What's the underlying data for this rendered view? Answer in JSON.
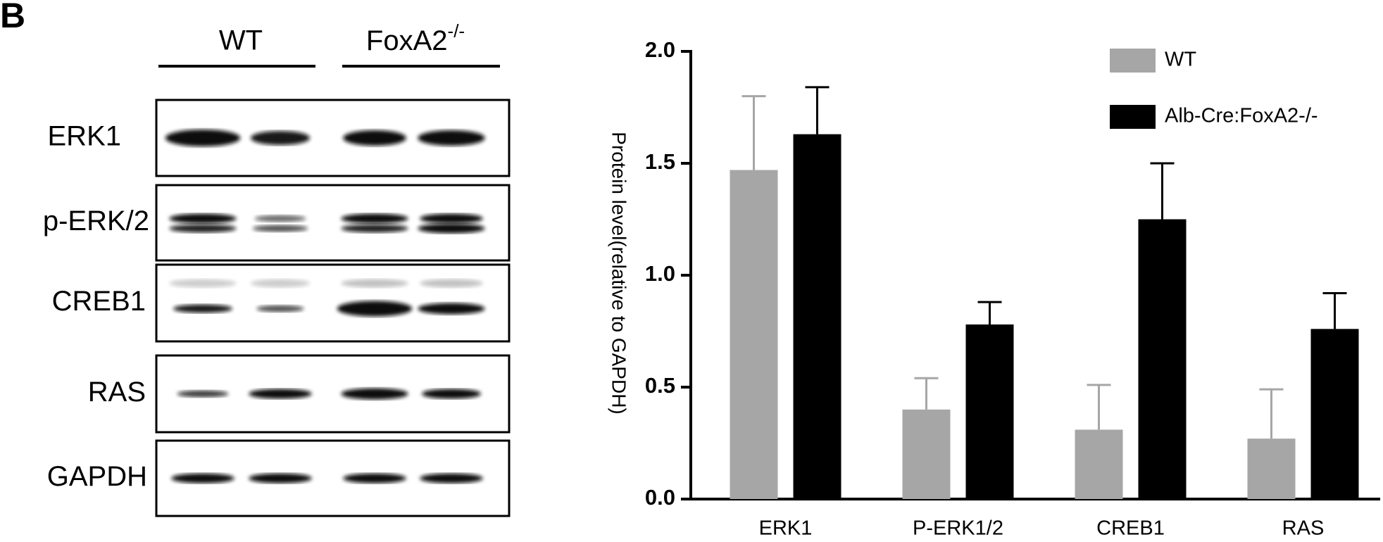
{
  "panel_label": "B",
  "blot": {
    "groups": [
      {
        "text": "WT"
      },
      {
        "text": "FoxA2",
        "superscript": "-/-"
      }
    ],
    "rows": [
      "ERK1",
      "p-ERK/2",
      "CREB1",
      "RAS",
      "GAPDH"
    ]
  },
  "chart_data": {
    "type": "bar",
    "y_label": "Protein level(relative to GAPDH)",
    "categories": [
      "ERK1",
      "P-ERK1/2",
      "CREB1",
      "RAS"
    ],
    "series": [
      {
        "name": "WT",
        "color": "#a6a6a6",
        "values": [
          1.47,
          0.4,
          0.31,
          0.27
        ],
        "errors": [
          0.33,
          0.14,
          0.2,
          0.22
        ]
      },
      {
        "name": "Alb-Cre:FoxA2-/-",
        "color": "#000000",
        "values": [
          1.63,
          0.78,
          1.25,
          0.76
        ],
        "errors": [
          0.21,
          0.1,
          0.25,
          0.16
        ]
      }
    ],
    "ylim": [
      0,
      2.0
    ],
    "yticks": [
      {
        "value": 0,
        "label": "0.0"
      },
      0.5,
      {
        "value": 1,
        "label": "1.0"
      },
      1.5,
      {
        "value": 2,
        "label": "2.0"
      }
    ],
    "legend": "top-right"
  }
}
